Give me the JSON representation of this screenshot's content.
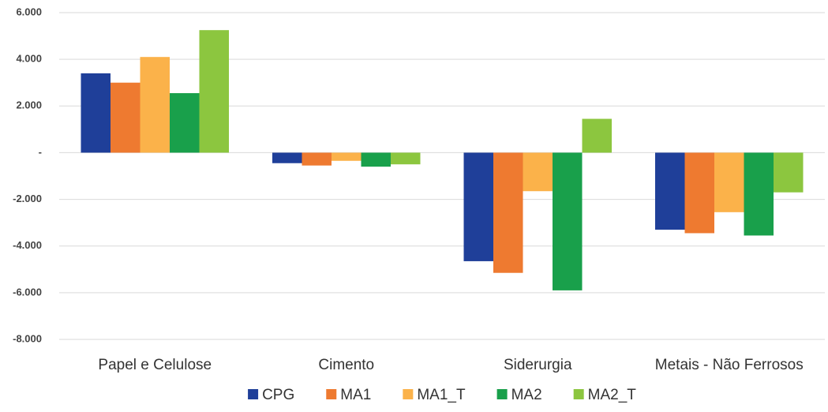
{
  "chart_data": {
    "type": "bar",
    "categories": [
      "Papel e Celulose",
      "Cimento",
      "Siderurgia",
      "Metais - Não Ferrosos"
    ],
    "series": [
      {
        "name": "CPG",
        "color": "#1f3f99",
        "values": [
          3400,
          -450,
          -4650,
          -3300
        ]
      },
      {
        "name": "MA1",
        "color": "#ee7a30",
        "values": [
          3000,
          -550,
          -5150,
          -3450
        ]
      },
      {
        "name": "MA1_T",
        "color": "#fbb24a",
        "values": [
          4100,
          -350,
          -1650,
          -2550
        ]
      },
      {
        "name": "MA2",
        "color": "#19a04b",
        "values": [
          2550,
          -600,
          -5900,
          -3550
        ]
      },
      {
        "name": "MA2_T",
        "color": "#8cc63f",
        "values": [
          5250,
          -500,
          1450,
          -1700
        ]
      }
    ],
    "ylim": [
      -8000,
      6000
    ],
    "yticks": [
      {
        "value": -8000,
        "label": "-8.000"
      },
      {
        "value": -6000,
        "label": "-6.000"
      },
      {
        "value": -4000,
        "label": "-4.000"
      },
      {
        "value": -2000,
        "label": "-2.000"
      },
      {
        "value": 0,
        "label": "-"
      },
      {
        "value": 2000,
        "label": "2.000"
      },
      {
        "value": 4000,
        "label": "4.000"
      },
      {
        "value": 6000,
        "label": "6.000"
      }
    ],
    "grid": true
  }
}
